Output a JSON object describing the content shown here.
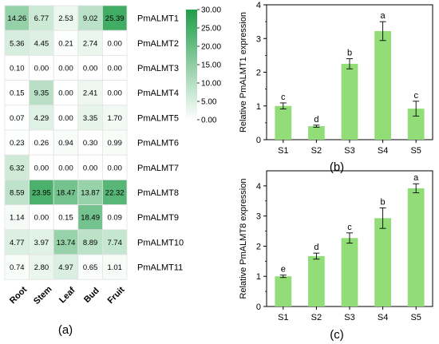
{
  "chart_data": [
    {
      "type": "heatmap",
      "panel_label": "(a)",
      "columns": [
        "Root",
        "Stem",
        "Leaf",
        "Bud",
        "Fruit"
      ],
      "rows": [
        "PmALMT1",
        "PmALMT2",
        "PmALMT3",
        "PmALMT4",
        "PmALMT5",
        "PmALMT6",
        "PmALMT7",
        "PmALMT8",
        "PmALMT9",
        "PmALMT10",
        "PmALMT11"
      ],
      "values": [
        [
          14.26,
          6.77,
          2.53,
          9.02,
          25.39
        ],
        [
          5.36,
          4.45,
          0.21,
          2.74,
          0.0
        ],
        [
          0.1,
          0.0,
          0.0,
          0.0,
          0.0
        ],
        [
          0.15,
          9.35,
          0.0,
          2.41,
          0.0
        ],
        [
          0.07,
          4.29,
          0.0,
          3.35,
          1.7
        ],
        [
          0.23,
          0.26,
          0.94,
          0.3,
          0.99
        ],
        [
          6.32,
          0.0,
          0.0,
          0.0,
          0.0
        ],
        [
          8.59,
          23.95,
          18.47,
          13.87,
          22.32
        ],
        [
          1.14,
          0.0,
          0.15,
          18.49,
          0.09
        ],
        [
          4.77,
          3.97,
          13.74,
          8.89,
          7.74
        ],
        [
          0.74,
          2.8,
          4.97,
          0.65,
          1.01
        ]
      ],
      "value_labels": [
        [
          "14.26",
          "6.77",
          "2.53",
          "9.02",
          "25.39"
        ],
        [
          "5.36",
          "4.45",
          "0.21",
          "2.74",
          "0.00"
        ],
        [
          "0.10",
          "0.00",
          "0.00",
          "0.00",
          "0.00"
        ],
        [
          "0.15",
          "9.35",
          "0.00",
          "2.41",
          "0.00"
        ],
        [
          "0.07",
          "4.29",
          "0.00",
          "3.35",
          "1.70"
        ],
        [
          "0.23",
          "0.26",
          "0.94",
          "0.30",
          "0.99"
        ],
        [
          "6.32",
          "0.00",
          "0.00",
          "0.00",
          "0.00"
        ],
        [
          "8.59",
          "23.95",
          "18.47",
          "13.87",
          "22.32"
        ],
        [
          "1.14",
          "0.00",
          "0.15",
          "18.49",
          "0.09"
        ],
        [
          "4.77",
          "3.97",
          "13.74",
          "8.89",
          "7.74"
        ],
        [
          "0.74",
          "2.80",
          "4.97",
          "0.65",
          "1.01"
        ]
      ],
      "colorbar": {
        "range": [
          0,
          30
        ],
        "ticks": [
          "30.00",
          "25.00",
          "20.00",
          "15.00",
          "10.00",
          "5.00",
          "0.00"
        ],
        "low_color": "#ffffff",
        "high_color": "#1e9d47"
      }
    },
    {
      "type": "bar",
      "panel_label": "(b)",
      "ylabel": "Relative PmALMT1 expression",
      "categories": [
        "S1",
        "S2",
        "S3",
        "S4",
        "S5"
      ],
      "values": [
        1.0,
        0.4,
        2.25,
        3.22,
        0.92
      ],
      "errors": [
        0.09,
        0.03,
        0.15,
        0.28,
        0.22
      ],
      "letters": [
        "c",
        "d",
        "b",
        "a",
        "c"
      ],
      "ylim": [
        0,
        4
      ],
      "yticks": [
        0,
        1,
        2,
        3,
        4
      ],
      "ytick_labels": [
        "0",
        "1",
        "2",
        "3",
        "4"
      ],
      "bar_color": "#92dd78"
    },
    {
      "type": "bar",
      "panel_label": "(c)",
      "ylabel": "Relative PmALMT8 expression",
      "categories": [
        "S1",
        "S2",
        "S3",
        "S4",
        "S5"
      ],
      "values": [
        1.0,
        1.67,
        2.27,
        2.93,
        3.92
      ],
      "errors": [
        0.04,
        0.1,
        0.17,
        0.34,
        0.15
      ],
      "letters": [
        "e",
        "d",
        "c",
        "b",
        "a"
      ],
      "ylim": [
        0,
        4.5
      ],
      "yticks": [
        0,
        1,
        2,
        3,
        4
      ],
      "ytick_labels": [
        "0",
        "1",
        "2",
        "3",
        "4"
      ],
      "bar_color": "#92dd78"
    }
  ]
}
